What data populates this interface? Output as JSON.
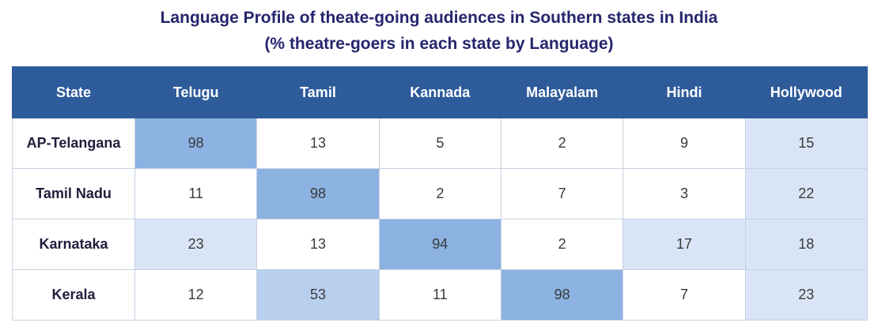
{
  "chart_data": {
    "type": "table",
    "title": "Language Profile of theate-going audiences in Southern states in India",
    "subtitle": "(% theatre-goers in each state by Language)",
    "corner_header": "State",
    "columns": [
      "Telugu",
      "Tamil",
      "Kannada",
      "Malayalam",
      "Hindi",
      "Hollywood"
    ],
    "rows": [
      {
        "state": "AP-Telangana",
        "values": [
          98,
          13,
          5,
          2,
          9,
          15
        ]
      },
      {
        "state": "Tamil Nadu",
        "values": [
          11,
          98,
          2,
          7,
          3,
          22
        ]
      },
      {
        "state": "Karnataka",
        "values": [
          23,
          13,
          94,
          2,
          17,
          18
        ]
      },
      {
        "state": "Kerala",
        "values": [
          12,
          53,
          11,
          98,
          7,
          23
        ]
      }
    ]
  },
  "colors": {
    "title": "#25256e",
    "header_bg": "#2e5b9a",
    "header_text": "#ffffff",
    "cell_high": "#8cb2e2",
    "cell_mid": "#b8cfee",
    "cell_low": "#d9e5f6",
    "cell_none": "#ffffff"
  }
}
